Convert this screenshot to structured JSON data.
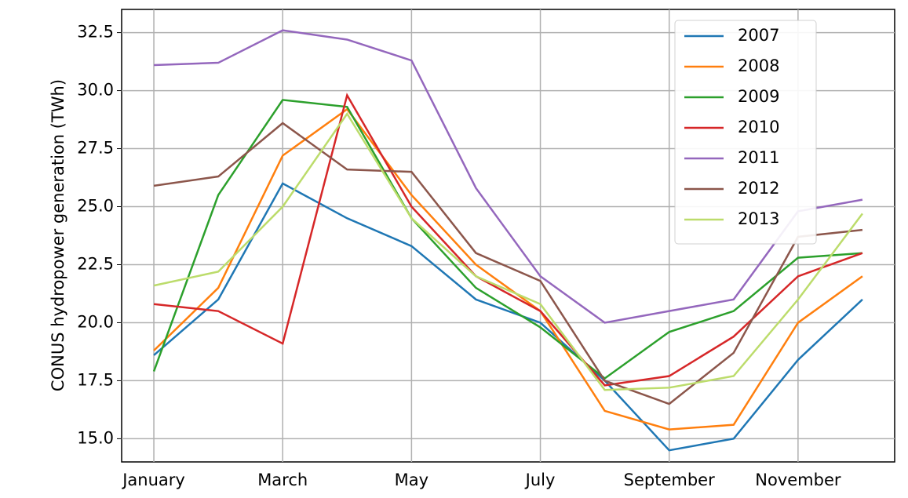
{
  "chart_data": {
    "type": "line",
    "y_label": "CONUS hydropower generation (TWh)",
    "categories": [
      "January",
      null,
      "March",
      null,
      "May",
      null,
      "July",
      null,
      "September",
      null,
      "November",
      null
    ],
    "ylim": [
      14,
      33.5
    ],
    "yticks": [
      {
        "value": 15,
        "label": "15.0"
      },
      17.5,
      {
        "value": 20,
        "label": "20.0"
      },
      22.5,
      {
        "value": 25,
        "label": "25.0"
      },
      27.5,
      {
        "value": 30,
        "label": "30.0"
      },
      32.5
    ],
    "grid": true,
    "legend": "upper right",
    "series": [
      {
        "name": "2007",
        "color": "#1f77b4",
        "values": [
          18.6,
          21,
          26.0,
          24.5,
          23.3,
          21,
          20,
          17.5,
          14.5,
          15,
          18.4,
          21
        ]
      },
      {
        "name": "2008",
        "color": "#ff7f0e",
        "values": [
          18.8,
          21.5,
          27.2,
          29.2,
          25.5,
          22.5,
          20.5,
          16.2,
          15.4,
          15.6,
          20,
          22
        ]
      },
      {
        "name": "2009",
        "color": "#2ca02c",
        "values": [
          17.9,
          25.5,
          29.6,
          29.3,
          24.5,
          21.5,
          19.8,
          17.6,
          19.6,
          20.5,
          22.8,
          23
        ]
      },
      {
        "name": "2010",
        "color": "#d62728",
        "values": [
          20.8,
          20.5,
          19.1,
          29.8,
          25,
          22,
          20.5,
          17.3,
          17.7,
          19.4,
          22,
          23
        ]
      },
      {
        "name": "2011",
        "color": "#9467bd",
        "values": [
          31.1,
          31.2,
          32.6,
          32.2,
          31.3,
          25.8,
          22,
          20,
          20.5,
          21,
          24.8,
          25.3
        ]
      },
      {
        "name": "2012",
        "color": "#8c564b",
        "values": [
          25.9,
          26.3,
          28.6,
          26.6,
          26.5,
          23,
          21.8,
          17.5,
          16.5,
          18.7,
          23.7,
          24
        ]
      },
      {
        "name": "2013",
        "color": "#bcdc6b",
        "values": [
          21.6,
          22.2,
          25.0,
          29.0,
          24.5,
          22,
          20.8,
          17.1,
          17.2,
          17.7,
          21,
          24.7
        ]
      }
    ]
  }
}
